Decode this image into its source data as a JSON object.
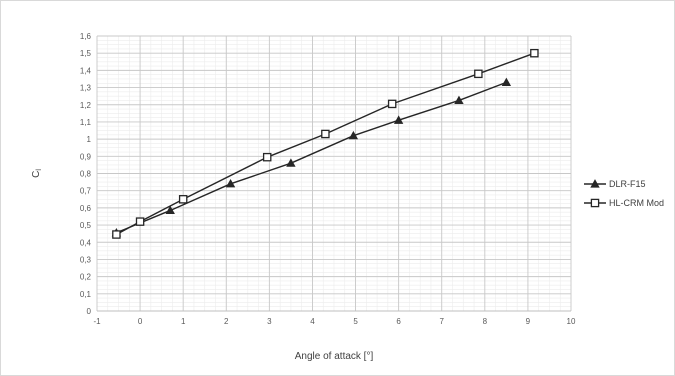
{
  "chart_data": {
    "type": "line",
    "title": "",
    "xlabel": "Angle of attack [°]",
    "ylabel": "C",
    "ylabel_subscript": "l",
    "xlim": [
      -1,
      10
    ],
    "ylim": [
      0,
      1.6
    ],
    "x_major_step": 1,
    "y_major_step": 0.1,
    "x_minor_step": 0.25,
    "y_minor_step": 0.025,
    "decimal_separator": ",",
    "grid": true,
    "legend_position": "right",
    "series": [
      {
        "name": "DLR-F15",
        "marker": "triangle",
        "color": "#262626",
        "x": [
          -0.55,
          0.7,
          2.1,
          3.5,
          4.95,
          6.0,
          7.4,
          8.5
        ],
        "y": [
          0.455,
          0.585,
          0.74,
          0.86,
          1.02,
          1.11,
          1.225,
          1.33
        ]
      },
      {
        "name": "HL-CRM Mod",
        "marker": "square",
        "color": "#262626",
        "x": [
          -0.55,
          0.0,
          1.0,
          2.95,
          4.3,
          5.85,
          7.85,
          9.15
        ],
        "y": [
          0.445,
          0.52,
          0.65,
          0.895,
          1.03,
          1.205,
          1.38,
          1.5
        ]
      }
    ]
  }
}
